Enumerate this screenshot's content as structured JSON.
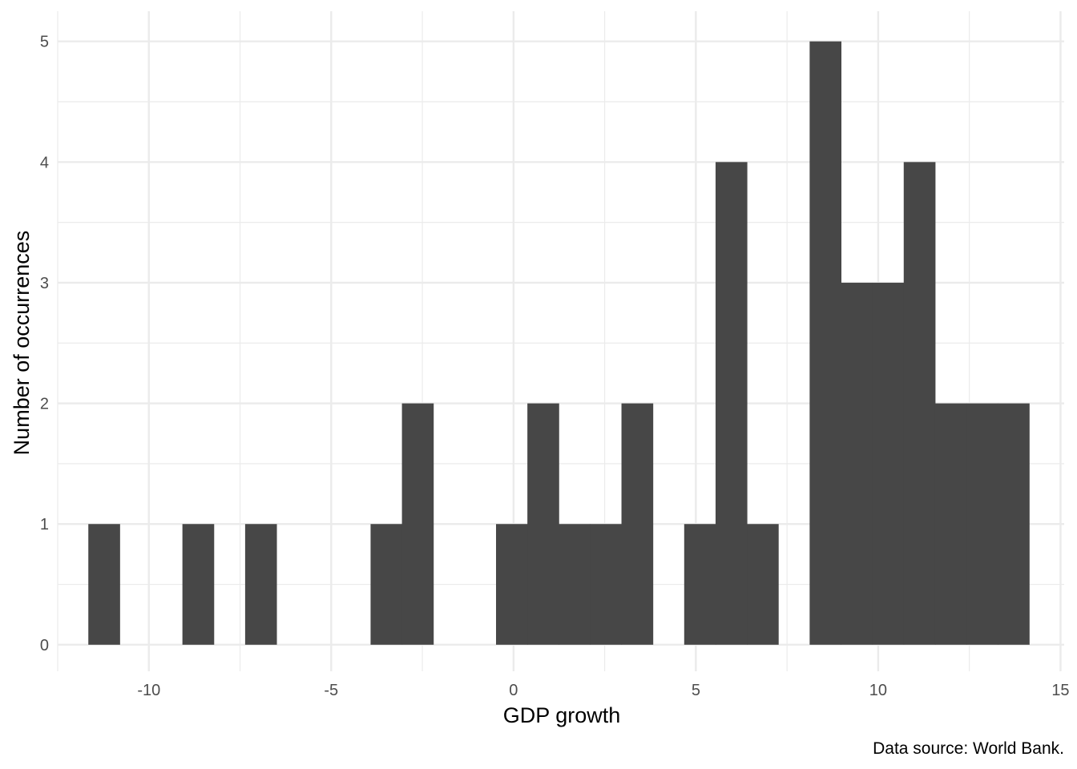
{
  "chart_data": {
    "type": "bar",
    "subtype": "histogram",
    "xlabel": "GDP growth",
    "ylabel": "Number of occurrences",
    "caption": "Data source: World Bank.",
    "xlim": [
      -12.5,
      15.1
    ],
    "ylim": [
      -0.22,
      5.25
    ],
    "x_ticks": [
      -10,
      -5,
      0,
      5,
      10,
      15
    ],
    "y_ticks": [
      0,
      1,
      2,
      3,
      4,
      5
    ],
    "x_tick_labels": [
      "-10",
      "-5",
      "0",
      "5",
      "10",
      "15"
    ],
    "y_tick_labels": [
      "0",
      "1",
      "2",
      "3",
      "4",
      "5"
    ],
    "bin_width": 0.86,
    "bins": [
      {
        "x0": -11.66,
        "x1": -10.8,
        "count": 1
      },
      {
        "x0": -9.08,
        "x1": -8.22,
        "count": 1
      },
      {
        "x0": -7.36,
        "x1": -6.5,
        "count": 1
      },
      {
        "x0": -3.92,
        "x1": -3.06,
        "count": 1
      },
      {
        "x0": -3.06,
        "x1": -2.2,
        "count": 2
      },
      {
        "x0": -0.48,
        "x1": 0.38,
        "count": 1
      },
      {
        "x0": 0.38,
        "x1": 1.24,
        "count": 2
      },
      {
        "x0": 1.24,
        "x1": 2.1,
        "count": 1
      },
      {
        "x0": 2.1,
        "x1": 2.96,
        "count": 1
      },
      {
        "x0": 2.96,
        "x1": 3.82,
        "count": 2
      },
      {
        "x0": 4.68,
        "x1": 5.54,
        "count": 1
      },
      {
        "x0": 5.54,
        "x1": 6.4,
        "count": 4
      },
      {
        "x0": 6.4,
        "x1": 7.26,
        "count": 1
      },
      {
        "x0": 8.12,
        "x1": 8.98,
        "count": 5
      },
      {
        "x0": 8.98,
        "x1": 9.84,
        "count": 3
      },
      {
        "x0": 9.84,
        "x1": 10.7,
        "count": 3
      },
      {
        "x0": 10.7,
        "x1": 11.56,
        "count": 4
      },
      {
        "x0": 11.56,
        "x1": 12.42,
        "count": 2
      },
      {
        "x0": 12.42,
        "x1": 13.28,
        "count": 2
      },
      {
        "x0": 13.28,
        "x1": 14.14,
        "count": 2
      }
    ],
    "grid": true,
    "bar_color": "#474747",
    "grid_color": "#ebebeb"
  }
}
